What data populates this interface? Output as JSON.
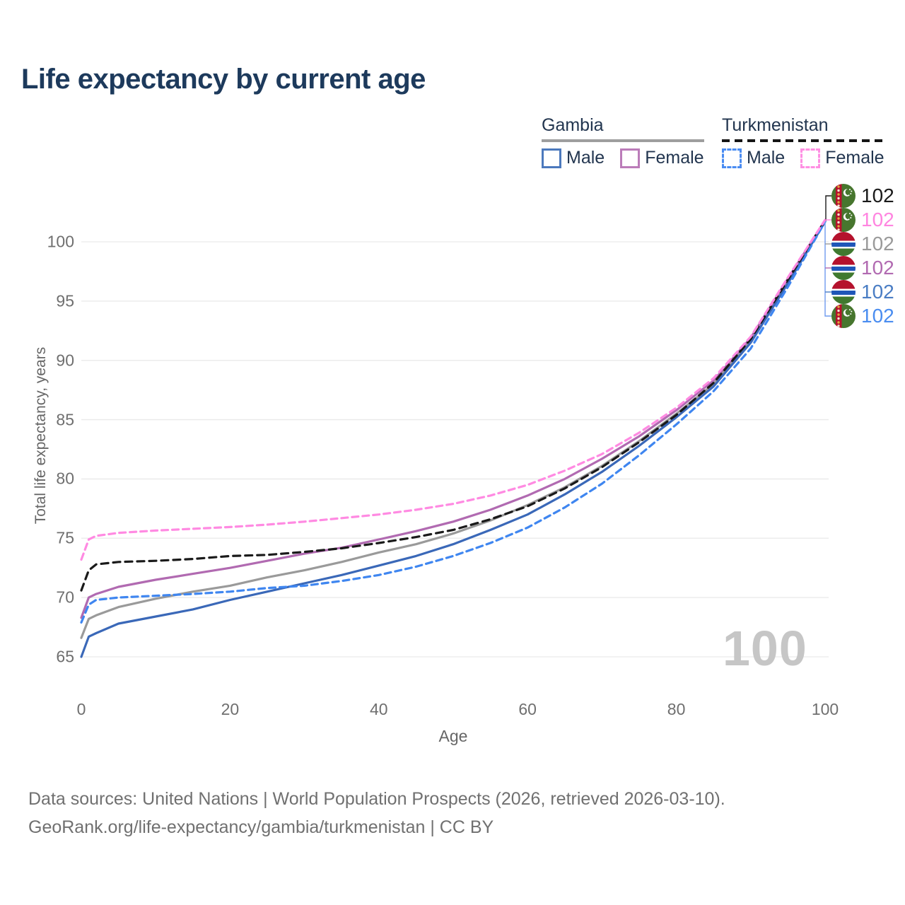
{
  "title": "Life expectancy by current age",
  "legend": {
    "groups": [
      {
        "label": "Gambia",
        "underline": "solid",
        "items": [
          {
            "label": "Male"
          },
          {
            "label": "Female"
          }
        ]
      },
      {
        "label": "Turkmenistan",
        "underline": "dashed",
        "items": [
          {
            "label": "Male"
          },
          {
            "label": "Female"
          }
        ]
      }
    ]
  },
  "chart_data": {
    "type": "line",
    "title": "Life expectancy by current age",
    "xlabel": "Age",
    "ylabel": "Total life expectancy, years",
    "xlim": [
      0,
      100
    ],
    "ylim": [
      65,
      103
    ],
    "xticks": [
      0,
      20,
      40,
      60,
      80,
      100
    ],
    "yticks": [
      65,
      70,
      75,
      80,
      85,
      90,
      95,
      100
    ],
    "grid": "horizontal",
    "legend_position": "top-right",
    "x": [
      0,
      1,
      2,
      5,
      10,
      15,
      20,
      25,
      30,
      35,
      40,
      45,
      50,
      55,
      60,
      65,
      70,
      75,
      80,
      85,
      90,
      95,
      100
    ],
    "series": [
      {
        "name": "gambia-total",
        "country": "Gambia",
        "sex": "Total",
        "color": "#9a9a9a",
        "dash": null,
        "values": [
          66.6,
          68.2,
          68.5,
          69.2,
          69.9,
          70.5,
          71.0,
          71.7,
          72.3,
          73.0,
          73.8,
          74.5,
          75.4,
          76.5,
          77.8,
          79.3,
          81.1,
          83.2,
          85.5,
          88.0,
          91.7,
          96.7,
          101.75
        ]
      },
      {
        "name": "gambia-female",
        "country": "Gambia",
        "sex": "Female",
        "color": "#b16ab1",
        "dash": null,
        "values": [
          68.3,
          70.0,
          70.3,
          70.9,
          71.5,
          72.0,
          72.5,
          73.1,
          73.7,
          74.2,
          74.9,
          75.6,
          76.4,
          77.4,
          78.6,
          80.0,
          81.7,
          83.6,
          85.8,
          88.3,
          91.9,
          96.9,
          101.8
        ]
      },
      {
        "name": "gambia-male",
        "country": "Gambia",
        "sex": "Male",
        "color": "#3a68b8",
        "dash": null,
        "values": [
          65.0,
          66.7,
          67.0,
          67.8,
          68.4,
          69.0,
          69.8,
          70.5,
          71.2,
          71.9,
          72.7,
          73.5,
          74.5,
          75.7,
          77.0,
          78.7,
          80.6,
          82.8,
          85.2,
          87.8,
          91.5,
          96.5,
          101.7
        ]
      },
      {
        "name": "turkmenistan-total",
        "country": "Turkmenistan",
        "sex": "Total",
        "color": "#1a1a1a",
        "dash": "10 7",
        "values": [
          70.6,
          72.3,
          72.8,
          73.0,
          73.1,
          73.25,
          73.5,
          73.6,
          73.85,
          74.15,
          74.6,
          75.1,
          75.7,
          76.6,
          77.7,
          79.2,
          81.0,
          83.1,
          85.4,
          88.1,
          91.8,
          96.8,
          101.8
        ]
      },
      {
        "name": "turkmenistan-male",
        "country": "Turkmenistan",
        "sex": "Male",
        "color": "#3f86f0",
        "dash": "9 6",
        "values": [
          67.9,
          69.4,
          69.8,
          70.0,
          70.15,
          70.3,
          70.5,
          70.8,
          71.0,
          71.4,
          71.9,
          72.6,
          73.5,
          74.6,
          75.9,
          77.6,
          79.6,
          82.0,
          84.6,
          87.4,
          91.0,
          96.2,
          101.7
        ]
      },
      {
        "name": "turkmenistan-female",
        "country": "Turkmenistan",
        "sex": "Female",
        "color": "#ff8ae2",
        "dash": "9 6",
        "values": [
          73.2,
          74.9,
          75.2,
          75.45,
          75.65,
          75.8,
          75.95,
          76.15,
          76.4,
          76.7,
          77.0,
          77.4,
          77.9,
          78.6,
          79.5,
          80.7,
          82.1,
          83.9,
          86.0,
          88.5,
          92.0,
          97.0,
          101.85
        ]
      }
    ]
  },
  "endpoint_labels": [
    {
      "value": "102",
      "color": "#1a1a1a",
      "flag": "turkmenistan",
      "series": "turkmenistan-total"
    },
    {
      "value": "102",
      "color": "#ff85e0",
      "flag": "turkmenistan",
      "series": "turkmenistan-female"
    },
    {
      "value": "102",
      "color": "#9a9a9a",
      "flag": "gambia",
      "series": "gambia-total"
    },
    {
      "value": "102",
      "color": "#b16ab1",
      "flag": "gambia",
      "series": "gambia-female"
    },
    {
      "value": "102",
      "color": "#4a7dc4",
      "flag": "gambia",
      "series": "gambia-male"
    },
    {
      "value": "102",
      "color": "#4a8df0",
      "flag": "turkmenistan",
      "series": "turkmenistan-male"
    }
  ],
  "watermark": "100",
  "sources": {
    "line1": "Data sources: United Nations | World Population Prospects (2026, retrieved 2026-03-10).",
    "line2": "GeoRank.org/life-expectancy/gambia/turkmenistan | CC BY"
  }
}
